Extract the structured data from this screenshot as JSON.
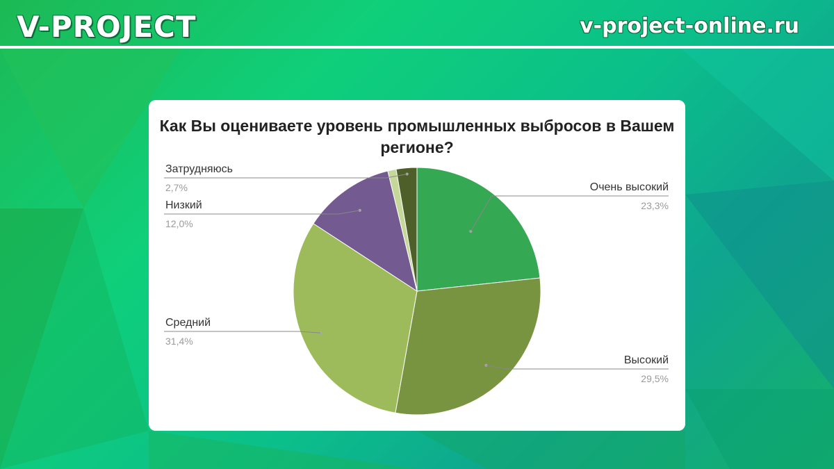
{
  "header": {
    "brand": "V-PROJECT",
    "site": "v-project-online.ru"
  },
  "colors": {
    "accent_green": "#1db954",
    "card_bg": "#ffffff"
  },
  "chart_data": {
    "type": "pie",
    "title": "Как Вы оцениваете уровень промышленных выбросов в Вашем регионе?",
    "slices": [
      {
        "label": "Очень высокий",
        "value": 23.3,
        "value_label": "23,3%",
        "color": "#34a853"
      },
      {
        "label": "Высокий",
        "value": 29.5,
        "value_label": "29,5%",
        "color": "#789440"
      },
      {
        "label": "Средний",
        "value": 31.4,
        "value_label": "31,4%",
        "color": "#9dbb5b"
      },
      {
        "label": "Низкий",
        "value": 12.0,
        "value_label": "12,0%",
        "color": "#735a91"
      },
      {
        "label": "",
        "value": 1.1,
        "value_label": "",
        "color": "#c5d89a"
      },
      {
        "label": "Затрудняюсь",
        "value": 2.7,
        "value_label": "2,7%",
        "color": "#4f5f2a"
      }
    ]
  }
}
